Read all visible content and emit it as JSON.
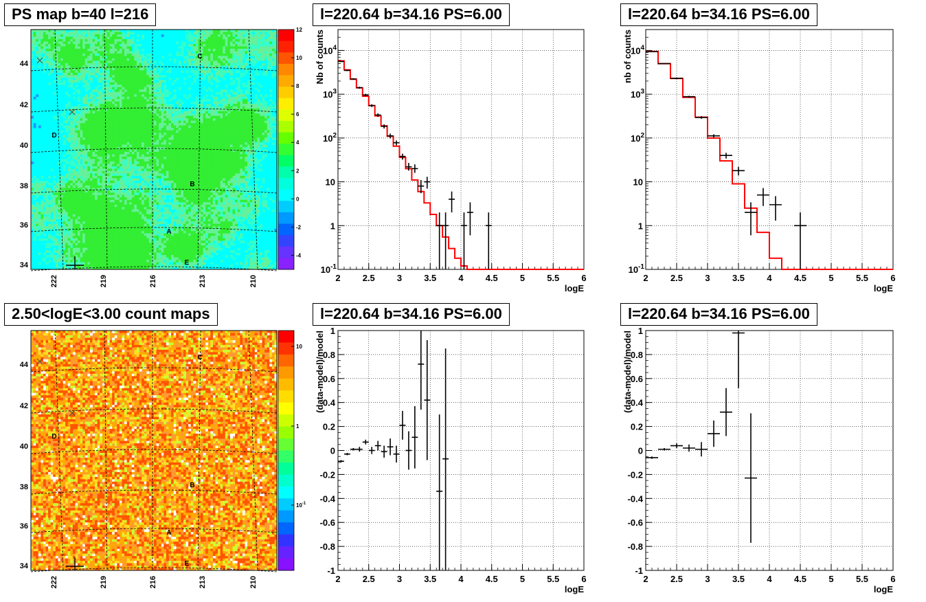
{
  "colors": {
    "model_line": "#ff0000",
    "data_points": "#000000",
    "grid": "#000000",
    "map_contour": "#000000"
  },
  "maps": [
    {
      "title": "PS map b=40 l=216",
      "type": "heatmap",
      "palette": "rainbow",
      "background_color": "#00ffff",
      "xticks": [
        "222",
        "219",
        "216",
        "213",
        "210"
      ],
      "yticks": [
        "44",
        "42",
        "40",
        "38",
        "36",
        "34"
      ],
      "colorbar_ticks": [
        "12",
        "10",
        "8",
        "6",
        "4",
        "2",
        "0",
        "-2",
        "-4"
      ],
      "colorbar_range": [
        -5,
        12
      ],
      "markers": [
        "A",
        "B",
        "C",
        "D",
        "E"
      ]
    },
    {
      "title": "2.50<logE<3.00 count maps",
      "type": "heatmap",
      "palette": "rainbow-log",
      "background_color": "#ff9933",
      "xticks": [
        "222",
        "219",
        "216",
        "213",
        "210"
      ],
      "yticks": [
        "44",
        "42",
        "40",
        "38",
        "36",
        "34"
      ],
      "colorbar_ticks": [
        "10",
        "1",
        "10-1"
      ],
      "markers": [
        "A",
        "B",
        "C",
        "D",
        "E"
      ]
    }
  ],
  "chart_data": [
    {
      "type": "line",
      "title": "l=220.64 b=34.16 PS=6.00",
      "xlabel": "logE",
      "ylabel": "Nb of counts",
      "xlim": [
        2,
        6
      ],
      "ylim": [
        0.1,
        30000
      ],
      "log_y": true,
      "grid": true,
      "xticks": [
        "2",
        "2.5",
        "3",
        "3.5",
        "4",
        "4.5",
        "5",
        "5.5",
        "6"
      ],
      "yticks": [
        {
          "v": 10000,
          "l": "10",
          "e": "4"
        },
        {
          "v": 1000,
          "l": "10",
          "e": "3"
        },
        {
          "v": 100,
          "l": "10",
          "e": "2"
        },
        {
          "v": 10,
          "l": "10"
        },
        {
          "v": 1,
          "l": "1"
        },
        {
          "v": 0.1,
          "l": "10",
          "e": "-1"
        }
      ],
      "model_step": {
        "edges": [
          2,
          2.1,
          2.2,
          2.3,
          2.4,
          2.5,
          2.6,
          2.7,
          2.8,
          2.9,
          3.0,
          3.1,
          3.2,
          3.3,
          3.4,
          3.5,
          3.6,
          3.7,
          3.8,
          3.9,
          4.0,
          4.1,
          4.2,
          6
        ],
        "values": [
          5800,
          3600,
          2200,
          1400,
          900,
          550,
          320,
          190,
          110,
          65,
          36,
          20,
          11,
          6,
          3.3,
          1.8,
          1.0,
          0.55,
          0.3,
          0.18,
          0.12,
          0.1,
          0.1
        ]
      },
      "data_points": [
        {
          "x": 2.05,
          "xe": 0.05,
          "y": 5600,
          "lo": 5450,
          "hi": 5750
        },
        {
          "x": 2.15,
          "xe": 0.05,
          "y": 3500,
          "lo": 3380,
          "hi": 3620
        },
        {
          "x": 2.25,
          "xe": 0.05,
          "y": 2230,
          "lo": 2140,
          "hi": 2320
        },
        {
          "x": 2.35,
          "xe": 0.05,
          "y": 1410,
          "lo": 1340,
          "hi": 1480
        },
        {
          "x": 2.45,
          "xe": 0.05,
          "y": 960,
          "lo": 900,
          "hi": 1020
        },
        {
          "x": 2.55,
          "xe": 0.05,
          "y": 550,
          "lo": 510,
          "hi": 590
        },
        {
          "x": 2.65,
          "xe": 0.05,
          "y": 335,
          "lo": 305,
          "hi": 365
        },
        {
          "x": 2.75,
          "xe": 0.05,
          "y": 185,
          "lo": 165,
          "hi": 205
        },
        {
          "x": 2.85,
          "xe": 0.05,
          "y": 112,
          "lo": 98,
          "hi": 126
        },
        {
          "x": 2.95,
          "xe": 0.05,
          "y": 78,
          "lo": 68,
          "hi": 88
        },
        {
          "x": 3.05,
          "xe": 0.05,
          "y": 38,
          "lo": 32,
          "hi": 44
        },
        {
          "x": 3.15,
          "xe": 0.05,
          "y": 22,
          "lo": 18,
          "hi": 27
        },
        {
          "x": 3.25,
          "xe": 0.05,
          "y": 20,
          "lo": 16,
          "hi": 25
        },
        {
          "x": 3.35,
          "xe": 0.05,
          "y": 8,
          "lo": 5.5,
          "hi": 11
        },
        {
          "x": 3.45,
          "xe": 0.05,
          "y": 10,
          "lo": 7,
          "hi": 13
        },
        {
          "x": 3.65,
          "xe": 0.05,
          "y": 1,
          "lo": 0.1,
          "hi": 2
        },
        {
          "x": 3.75,
          "xe": 0.05,
          "y": 1,
          "lo": 0.1,
          "hi": 2
        },
        {
          "x": 3.85,
          "xe": 0.05,
          "y": 4,
          "lo": 2,
          "hi": 6
        },
        {
          "x": 4.05,
          "xe": 0.05,
          "y": 1,
          "lo": 0.1,
          "hi": 2
        },
        {
          "x": 4.15,
          "xe": 0.05,
          "y": 2,
          "lo": 0.6,
          "hi": 3.4
        },
        {
          "x": 4.45,
          "xe": 0.05,
          "y": 1,
          "lo": 0.1,
          "hi": 2
        }
      ]
    },
    {
      "type": "line",
      "title": "l=220.64 b=34.16 PS=6.00",
      "xlabel": "logE",
      "ylabel": "nb of counts",
      "xlim": [
        2,
        6
      ],
      "ylim": [
        0.1,
        30000
      ],
      "log_y": true,
      "grid": true,
      "xticks": [
        "2",
        "2.5",
        "3",
        "3.5",
        "4",
        "4.5",
        "5",
        "5.5",
        "6"
      ],
      "yticks": [
        {
          "v": 10000,
          "l": "10",
          "e": "4"
        },
        {
          "v": 1000,
          "l": "10",
          "e": "3"
        },
        {
          "v": 100,
          "l": "10",
          "e": "2"
        },
        {
          "v": 10,
          "l": "10"
        },
        {
          "v": 1,
          "l": "1"
        },
        {
          "v": 0.1,
          "l": "10",
          "e": "-1"
        }
      ],
      "model_step": {
        "edges": [
          2,
          2.2,
          2.4,
          2.6,
          2.8,
          3.0,
          3.2,
          3.4,
          3.6,
          3.8,
          4.0,
          4.2,
          6
        ],
        "values": [
          9500,
          5000,
          2300,
          850,
          300,
          100,
          30,
          9,
          2.5,
          0.7,
          0.18,
          0.1
        ]
      },
      "data_points": [
        {
          "x": 2.1,
          "xe": 0.1,
          "y": 9400,
          "lo": 9200,
          "hi": 9600
        },
        {
          "x": 2.3,
          "xe": 0.1,
          "y": 5000,
          "lo": 4880,
          "hi": 5120
        },
        {
          "x": 2.5,
          "xe": 0.1,
          "y": 2300,
          "lo": 2220,
          "hi": 2380
        },
        {
          "x": 2.7,
          "xe": 0.1,
          "y": 880,
          "lo": 840,
          "hi": 920
        },
        {
          "x": 2.9,
          "xe": 0.1,
          "y": 295,
          "lo": 275,
          "hi": 315
        },
        {
          "x": 3.1,
          "xe": 0.1,
          "y": 112,
          "lo": 102,
          "hi": 122
        },
        {
          "x": 3.3,
          "xe": 0.1,
          "y": 40,
          "lo": 34,
          "hi": 46
        },
        {
          "x": 3.5,
          "xe": 0.1,
          "y": 18,
          "lo": 14,
          "hi": 22
        },
        {
          "x": 3.7,
          "xe": 0.1,
          "y": 2,
          "lo": 0.6,
          "hi": 3.4
        },
        {
          "x": 3.9,
          "xe": 0.1,
          "y": 5,
          "lo": 2.8,
          "hi": 7.2
        },
        {
          "x": 4.1,
          "xe": 0.1,
          "y": 3,
          "lo": 1.3,
          "hi": 4.7
        },
        {
          "x": 4.5,
          "xe": 0.1,
          "y": 1,
          "lo": 0.1,
          "hi": 2
        }
      ]
    },
    {
      "type": "scatter",
      "title": "l=220.64 b=34.16 PS=6.00",
      "xlabel": "logE",
      "ylabel": "(data-model)/model",
      "xlim": [
        2,
        6
      ],
      "ylim": [
        -1,
        1
      ],
      "log_y": false,
      "grid": true,
      "xticks": [
        "2",
        "2.5",
        "3",
        "3.5",
        "4",
        "4.5",
        "5",
        "5.5",
        "6"
      ],
      "yticks": [
        {
          "v": 1,
          "l": "1"
        },
        {
          "v": 0.8,
          "l": "0.8"
        },
        {
          "v": 0.6,
          "l": "0.6"
        },
        {
          "v": 0.4,
          "l": "0.4"
        },
        {
          "v": 0.2,
          "l": "0.2"
        },
        {
          "v": 0,
          "l": "0"
        },
        {
          "v": -0.2,
          "l": "-0.2"
        },
        {
          "v": -0.4,
          "l": "-0.4"
        },
        {
          "v": -0.6,
          "l": "-0.6"
        },
        {
          "v": -0.8,
          "l": "-0.8"
        },
        {
          "v": -1,
          "l": "-1"
        }
      ],
      "data_points": [
        {
          "x": 2.05,
          "xe": 0.05,
          "y": -0.09,
          "lo": -0.1,
          "hi": -0.08
        },
        {
          "x": 2.15,
          "xe": 0.05,
          "y": -0.03,
          "lo": -0.04,
          "hi": -0.02
        },
        {
          "x": 2.25,
          "xe": 0.05,
          "y": 0.01,
          "lo": 0.0,
          "hi": 0.02
        },
        {
          "x": 2.35,
          "xe": 0.05,
          "y": 0.01,
          "lo": -0.01,
          "hi": 0.03
        },
        {
          "x": 2.45,
          "xe": 0.05,
          "y": 0.07,
          "lo": 0.05,
          "hi": 0.09
        },
        {
          "x": 2.55,
          "xe": 0.05,
          "y": 0.0,
          "lo": -0.03,
          "hi": 0.03
        },
        {
          "x": 2.65,
          "xe": 0.05,
          "y": 0.04,
          "lo": 0.0,
          "hi": 0.08
        },
        {
          "x": 2.75,
          "xe": 0.05,
          "y": -0.01,
          "lo": -0.06,
          "hi": 0.04
        },
        {
          "x": 2.85,
          "xe": 0.05,
          "y": 0.03,
          "lo": -0.04,
          "hi": 0.1
        },
        {
          "x": 2.95,
          "xe": 0.05,
          "y": -0.03,
          "lo": -0.1,
          "hi": 0.04
        },
        {
          "x": 3.05,
          "xe": 0.05,
          "y": 0.21,
          "lo": 0.09,
          "hi": 0.33
        },
        {
          "x": 3.15,
          "xe": 0.05,
          "y": 0.0,
          "lo": -0.16,
          "hi": 0.16
        },
        {
          "x": 3.25,
          "xe": 0.05,
          "y": 0.11,
          "lo": -0.15,
          "hi": 0.37
        },
        {
          "x": 3.35,
          "xe": 0.05,
          "y": 0.72,
          "lo": 0.34,
          "hi": 1.0
        },
        {
          "x": 3.45,
          "xe": 0.05,
          "y": 0.42,
          "lo": -0.08,
          "hi": 0.92
        },
        {
          "x": 3.65,
          "xe": 0.05,
          "y": -0.34,
          "lo": -1.0,
          "hi": 0.3
        },
        {
          "x": 3.75,
          "xe": 0.05,
          "y": -0.07,
          "lo": -1.0,
          "hi": 0.85
        }
      ]
    },
    {
      "type": "scatter",
      "title": "l=220.64 b=34.16 PS=6.00",
      "xlabel": "logE",
      "ylabel": "(data-model)/model",
      "xlim": [
        2,
        6
      ],
      "ylim": [
        -1,
        1
      ],
      "log_y": false,
      "grid": true,
      "xticks": [
        "2",
        "2.5",
        "3",
        "3.5",
        "4",
        "4.5",
        "5",
        "5.5",
        "6"
      ],
      "yticks": [
        {
          "v": 1,
          "l": "1"
        },
        {
          "v": 0.8,
          "l": "0.8"
        },
        {
          "v": 0.6,
          "l": "0.6"
        },
        {
          "v": 0.4,
          "l": "0.4"
        },
        {
          "v": 0.2,
          "l": "0.2"
        },
        {
          "v": 0,
          "l": "0"
        },
        {
          "v": -0.2,
          "l": "-0.2"
        },
        {
          "v": -0.4,
          "l": "-0.4"
        },
        {
          "v": -0.6,
          "l": "-0.6"
        },
        {
          "v": -0.8,
          "l": "-0.8"
        },
        {
          "v": -1,
          "l": "-1"
        }
      ],
      "data_points": [
        {
          "x": 2.1,
          "xe": 0.1,
          "y": -0.06,
          "lo": -0.07,
          "hi": -0.05
        },
        {
          "x": 2.3,
          "xe": 0.1,
          "y": 0.01,
          "lo": 0.0,
          "hi": 0.02
        },
        {
          "x": 2.5,
          "xe": 0.1,
          "y": 0.04,
          "lo": 0.02,
          "hi": 0.06
        },
        {
          "x": 2.7,
          "xe": 0.1,
          "y": 0.02,
          "lo": -0.01,
          "hi": 0.05
        },
        {
          "x": 2.9,
          "xe": 0.1,
          "y": 0.01,
          "lo": -0.05,
          "hi": 0.07
        },
        {
          "x": 3.1,
          "xe": 0.1,
          "y": 0.14,
          "lo": 0.03,
          "hi": 0.25
        },
        {
          "x": 3.3,
          "xe": 0.1,
          "y": 0.32,
          "lo": 0.12,
          "hi": 0.52
        },
        {
          "x": 3.5,
          "xe": 0.1,
          "y": 0.98,
          "lo": 0.52,
          "hi": 1.0
        },
        {
          "x": 3.7,
          "xe": 0.1,
          "y": -0.23,
          "lo": -0.77,
          "hi": 0.31
        }
      ]
    }
  ]
}
